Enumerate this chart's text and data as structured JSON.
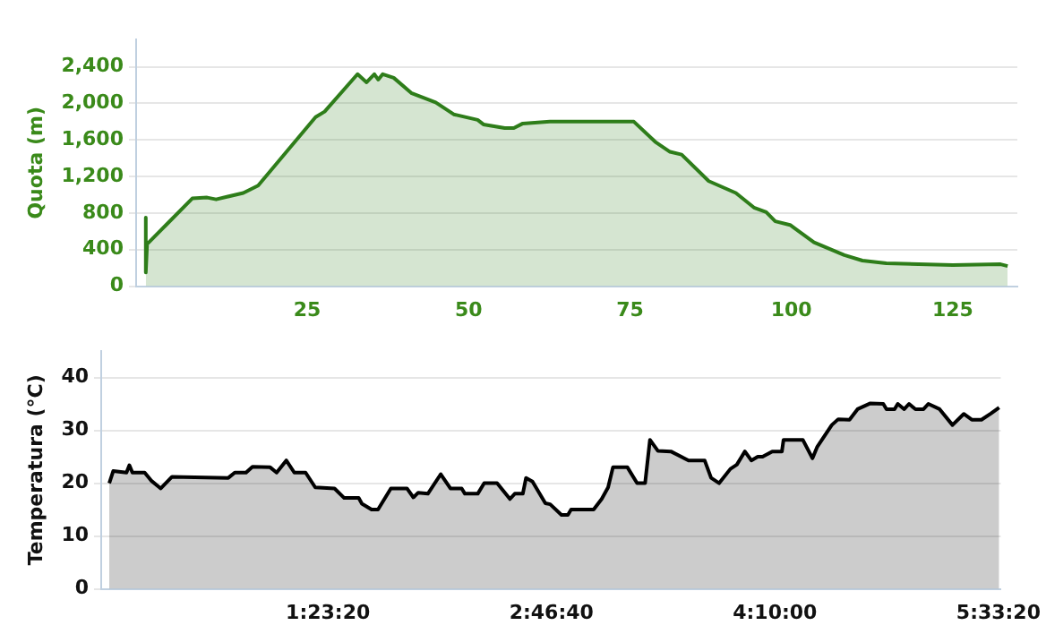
{
  "chart_data": [
    {
      "type": "area",
      "ylabel": "Quota (m)",
      "xlim": [
        -1.5,
        135
      ],
      "xticks": [
        25,
        50,
        75,
        100,
        125
      ],
      "ylim": [
        0,
        2700
      ],
      "yticks": [
        0,
        400,
        800,
        {
          "value": 1200,
          "label": "1,200"
        },
        {
          "value": 1600,
          "label": "1,600"
        },
        {
          "value": 2000,
          "label": "2,000"
        },
        {
          "value": 2400,
          "label": "2,400"
        }
      ],
      "grid": "y",
      "legend": false,
      "marker": "none",
      "series": [
        {
          "color": "#2e7d1a",
          "x": [
            0,
            0,
            0.2,
            3,
            7.2,
            9.5,
            10.9,
            15.1,
            17.4,
            26.3,
            27.7,
            32.8,
            34.2,
            35.4,
            36.0,
            36.7,
            38.4,
            41.2,
            44.9,
            47.7,
            51.4,
            52.3,
            55.6,
            57.0,
            58.4,
            62.6,
            75.6,
            78.9,
            81.2,
            83.0,
            87.2,
            91.4,
            94.2,
            96.1,
            97.5,
            99.8,
            103.5,
            108.2,
            111,
            114.7,
            125,
            132.4,
            133.5
          ],
          "values": [
            750,
            150,
            460,
            660,
            960,
            970,
            950,
            1020,
            1100,
            1850,
            1910,
            2320,
            2230,
            2320,
            2260,
            2320,
            2280,
            2110,
            2010,
            1880,
            1820,
            1770,
            1730,
            1730,
            1780,
            1800,
            1800,
            1580,
            1470,
            1440,
            1150,
            1020,
            860,
            810,
            710,
            670,
            480,
            340,
            280,
            250,
            230,
            240,
            220
          ]
        }
      ]
    },
    {
      "type": "area",
      "ylabel": "Temperatura (°C)",
      "xlim": [
        -0.02,
        5.57
      ],
      "xticks": [
        {
          "value": 1.38889,
          "label": "1:23:20"
        },
        {
          "value": 2.77778,
          "label": "2:46:40"
        },
        {
          "value": 4.16667,
          "label": "4:10:00"
        },
        {
          "value": 5.55556,
          "label": "5:33:20"
        }
      ],
      "ylim": [
        0,
        45
      ],
      "yticks": [
        0,
        10,
        20,
        30,
        40
      ],
      "grid": "y",
      "legend": false,
      "marker": "none",
      "series": [
        {
          "color": "#000000",
          "x": [
            0.03,
            0.055,
            0.137,
            0.155,
            0.174,
            0.25,
            0.29,
            0.35,
            0.42,
            0.77,
            0.81,
            0.88,
            0.92,
            1.03,
            1.07,
            1.13,
            1.18,
            1.25,
            1.31,
            1.43,
            1.49,
            1.58,
            1.6,
            1.66,
            1.7,
            1.78,
            1.88,
            1.92,
            1.95,
            2.01,
            2.09,
            2.15,
            2.22,
            2.24,
            2.32,
            2.36,
            2.44,
            2.52,
            2.55,
            2.6,
            2.62,
            2.66,
            2.74,
            2.77,
            2.84,
            2.88,
            2.9,
            3.04,
            3.09,
            3.13,
            3.16,
            3.25,
            3.31,
            3.36,
            3.39,
            3.44,
            3.52,
            3.63,
            3.73,
            3.77,
            3.82,
            3.89,
            3.93,
            3.98,
            4.02,
            4.06,
            4.09,
            4.15,
            4.21,
            4.22,
            4.34,
            4.4,
            4.43,
            4.52,
            4.56,
            4.63,
            4.68,
            4.76,
            4.84,
            4.86,
            4.91,
            4.93,
            4.97,
            5.0,
            5.04,
            5.09,
            5.12,
            5.19,
            5.27,
            5.34,
            5.39,
            5.45,
            5.51,
            5.56
          ],
          "values": [
            20,
            22.3,
            22,
            23.4,
            22,
            22,
            20.5,
            19,
            21.2,
            21,
            22,
            22,
            23.1,
            23,
            22,
            24.3,
            22,
            22,
            19.2,
            19,
            17.2,
            17.2,
            16.1,
            15,
            15,
            19,
            19,
            17.3,
            18.2,
            18,
            21.7,
            19,
            19,
            18,
            18,
            20,
            20,
            17,
            18,
            18,
            21,
            20.3,
            16.2,
            16,
            14,
            14,
            15,
            15,
            17,
            19.2,
            23,
            23,
            20,
            20,
            28.2,
            26.1,
            26,
            24.3,
            24.3,
            21,
            20,
            22.7,
            23.5,
            26,
            24.3,
            25,
            25,
            26,
            26,
            28.2,
            28.2,
            24.7,
            26.9,
            31,
            32.1,
            32,
            34,
            35.1,
            35,
            34,
            34,
            35,
            34,
            35,
            34,
            34,
            35,
            34,
            31,
            33.1,
            32,
            32,
            33.2,
            34.3
          ]
        }
      ]
    }
  ]
}
